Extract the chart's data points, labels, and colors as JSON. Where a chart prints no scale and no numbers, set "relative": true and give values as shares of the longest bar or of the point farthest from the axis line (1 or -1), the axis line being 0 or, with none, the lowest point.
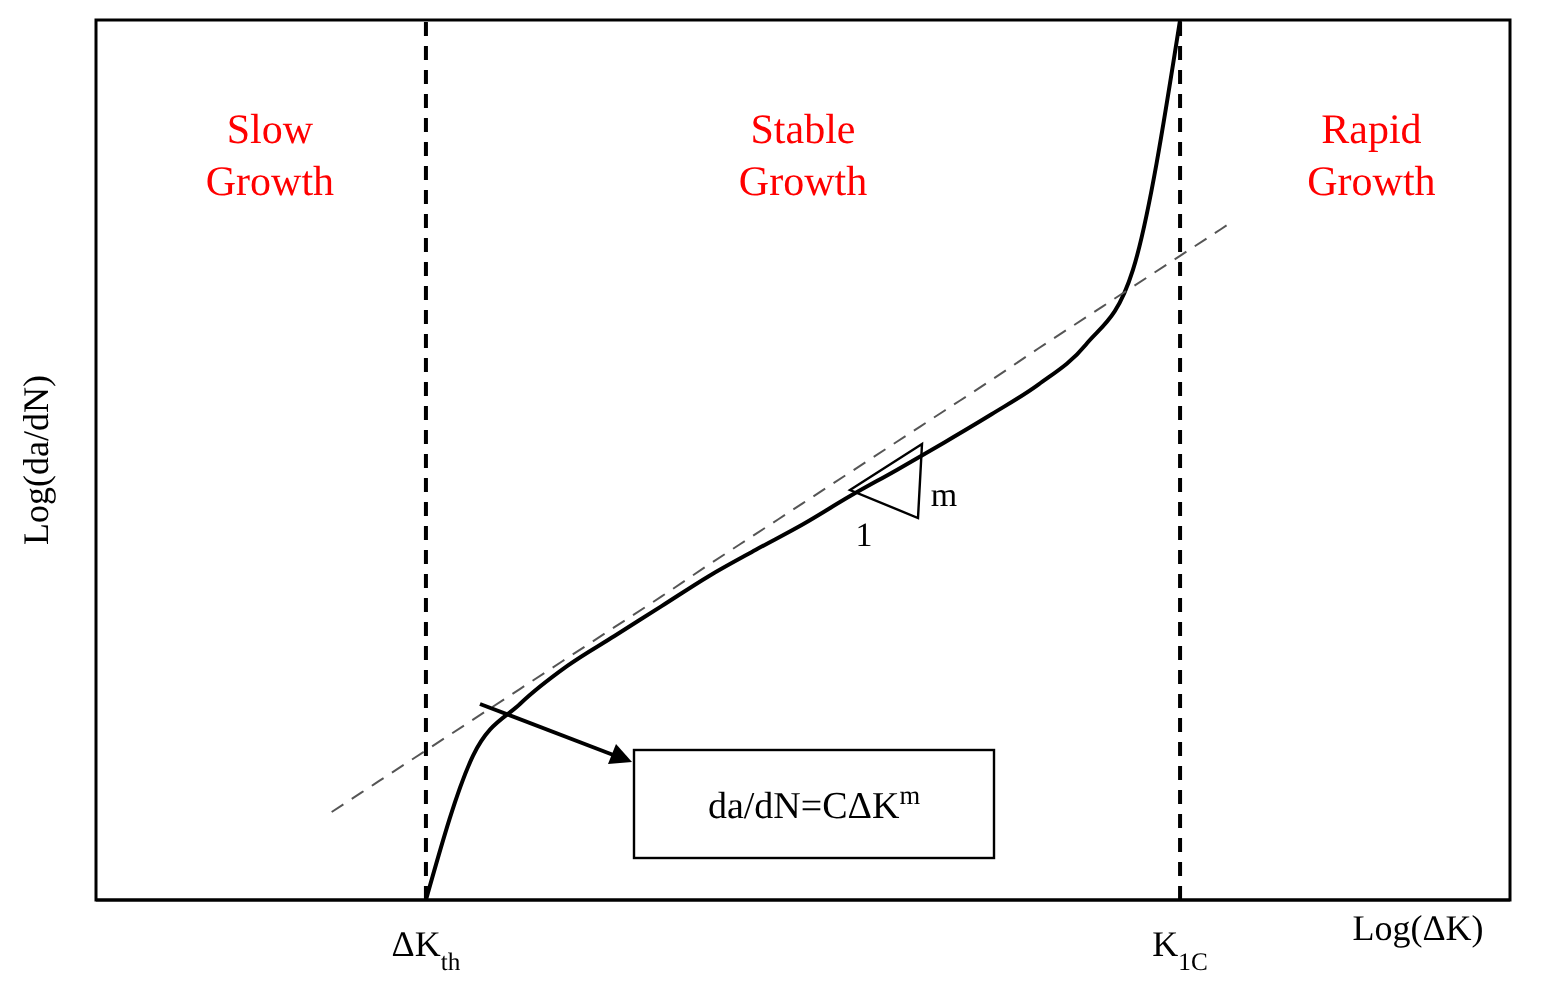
{
  "chart_data": {
    "type": "line",
    "relative": true,
    "xlabel": "Log(ΔK)",
    "ylabel": "Log(da/dN)",
    "categories": [
      null,
      null,
      null,
      null,
      null,
      null,
      null,
      "ΔK$_{th}$",
      null,
      null,
      null,
      null,
      null,
      null,
      null,
      null,
      null,
      null,
      null,
      null,
      null,
      null,
      null,
      "K$_{1C}$",
      null,
      null,
      null,
      null,
      null,
      null,
      null
    ],
    "series": [
      {
        "color": "#000000",
        "line_style": "solid",
        "values": [
          null,
          null,
          null,
          null,
          null,
          null,
          null,
          0,
          0.164,
          0.223,
          0.266,
          0.3,
          0.334,
          0.368,
          0.398,
          0.427,
          0.459,
          0.489,
          0.52,
          0.552,
          0.586,
          0.631,
          0.716,
          1,
          null,
          null,
          null,
          null,
          null,
          null,
          null
        ]
      },
      {
        "color": "#555555",
        "line_style": "dashed",
        "values": [
          null,
          null,
          null,
          null,
          null,
          0.1,
          0.135,
          0.17,
          0.205,
          0.24,
          0.275,
          0.31,
          0.345,
          0.381,
          0.416,
          0.451,
          0.486,
          0.521,
          0.556,
          0.591,
          0.627,
          0.662,
          0.697,
          0.732,
          0.767,
          null,
          null,
          null,
          null,
          null,
          null
        ]
      }
    ],
    "ref_lines": [
      {
        "axis": "x",
        "value": "ΔK$_{th}$",
        "color": "#000000",
        "line_style": "dashed"
      },
      {
        "axis": "x",
        "value": "K$_{1C}$",
        "color": "#000000",
        "line_style": "dashed"
      }
    ],
    "annotations": [
      "Slow Growth",
      "Stable Growth",
      "Rapid Growth",
      "da/dN=CΔK$^{m}$",
      "1",
      "m"
    ],
    "marker": "none"
  }
}
